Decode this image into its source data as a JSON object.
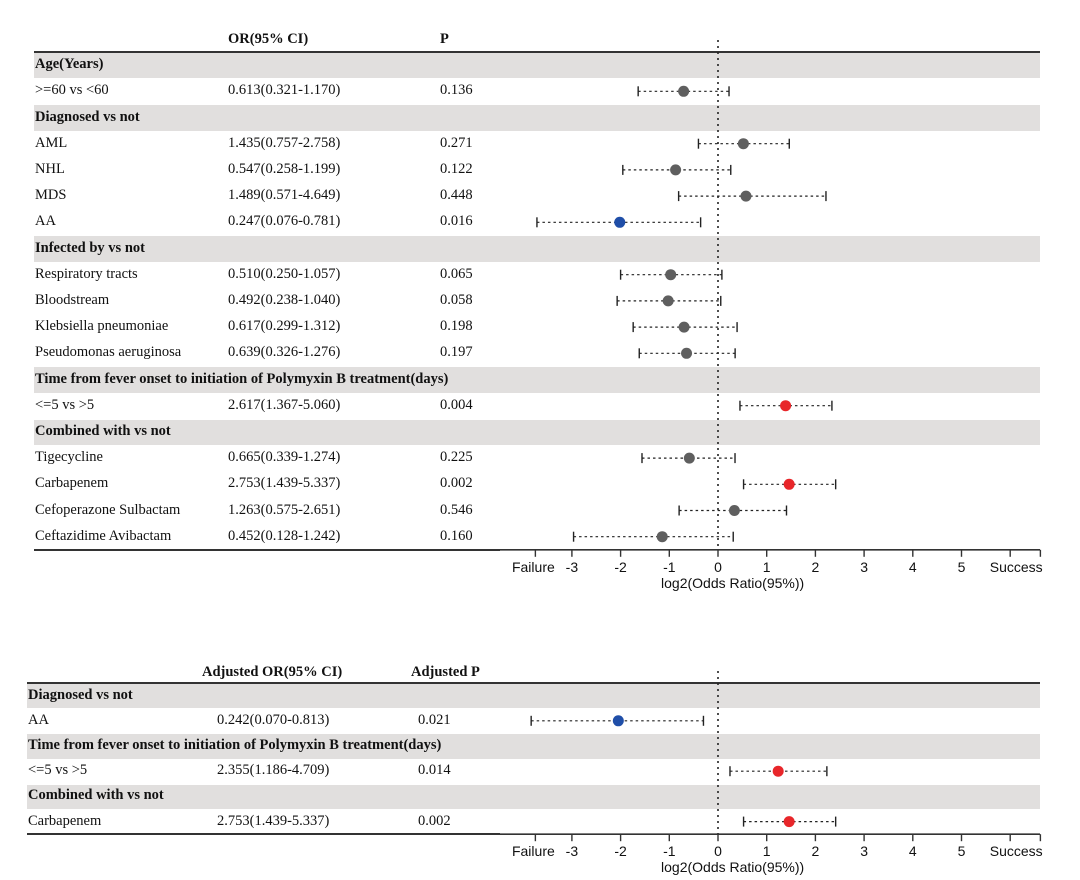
{
  "colors": {
    "band": "#e1dfde",
    "nonsignificant": "#5f5f5f",
    "protective": "#1f4ea8",
    "risk": "#e8262a",
    "axis": "#333333"
  },
  "chart_data": [
    {
      "type": "forest",
      "title": "",
      "columns": {
        "label": "",
        "or": "OR(95% CI)",
        "p": "P"
      },
      "xlabel": "log2(Odds Ratio(95%))",
      "xlim": [
        -3.75,
        6.75
      ],
      "x_ticks": [
        -3,
        -2,
        -1,
        0,
        1,
        2,
        3,
        4,
        5
      ],
      "x_left_label": "Failure",
      "x_right_label": "Success",
      "reference_line": 0,
      "rows": [
        {
          "kind": "group",
          "label": "Age(Years)"
        },
        {
          "kind": "item",
          "label": ">=60 vs <60",
          "or_text": "0.613(0.321-1.170)",
          "p": "0.136",
          "or": 0.613,
          "lo": 0.321,
          "hi": 1.17,
          "color": "nonsignificant"
        },
        {
          "kind": "group",
          "label": "Diagnosed vs not"
        },
        {
          "kind": "item",
          "label": "AML",
          "or_text": "1.435(0.757-2.758)",
          "p": "0.271",
          "or": 1.435,
          "lo": 0.757,
          "hi": 2.758,
          "color": "nonsignificant"
        },
        {
          "kind": "item",
          "label": "NHL",
          "or_text": "0.547(0.258-1.199)",
          "p": "0.122",
          "or": 0.547,
          "lo": 0.258,
          "hi": 1.199,
          "color": "nonsignificant"
        },
        {
          "kind": "item",
          "label": "MDS",
          "or_text": "1.489(0.571-4.649)",
          "p": "0.448",
          "or": 1.489,
          "lo": 0.571,
          "hi": 4.649,
          "color": "nonsignificant"
        },
        {
          "kind": "item",
          "label": "AA",
          "or_text": "0.247(0.076-0.781)",
          "p": "0.016",
          "or": 0.247,
          "lo": 0.076,
          "hi": 0.781,
          "color": "protective"
        },
        {
          "kind": "group",
          "label": "Infected by vs not"
        },
        {
          "kind": "item",
          "label": "Respiratory tracts",
          "or_text": "0.510(0.250-1.057)",
          "p": "0.065",
          "or": 0.51,
          "lo": 0.25,
          "hi": 1.057,
          "color": "nonsignificant"
        },
        {
          "kind": "item",
          "label": "Bloodstream",
          "or_text": "0.492(0.238-1.040)",
          "p": "0.058",
          "or": 0.492,
          "lo": 0.238,
          "hi": 1.04,
          "color": "nonsignificant"
        },
        {
          "kind": "item",
          "label": "Klebsiella pneumoniae",
          "or_text": "0.617(0.299-1.312)",
          "p": "0.198",
          "or": 0.617,
          "lo": 0.299,
          "hi": 1.312,
          "color": "nonsignificant"
        },
        {
          "kind": "item",
          "label": "Pseudomonas aeruginosa",
          "or_text": "0.639(0.326-1.276)",
          "p": "0.197",
          "or": 0.639,
          "lo": 0.326,
          "hi": 1.276,
          "color": "nonsignificant"
        },
        {
          "kind": "group",
          "label": "Time from fever onset to initiation of Polymyxin B treatment(days)"
        },
        {
          "kind": "item",
          "label": "<=5 vs >5",
          "or_text": "2.617(1.367-5.060)",
          "p": "0.004",
          "or": 2.617,
          "lo": 1.367,
          "hi": 5.06,
          "color": "risk"
        },
        {
          "kind": "group",
          "label": "Combined with vs not"
        },
        {
          "kind": "item",
          "label": "Tigecycline",
          "or_text": "0.665(0.339-1.274)",
          "p": "0.225",
          "or": 0.665,
          "lo": 0.339,
          "hi": 1.274,
          "color": "nonsignificant"
        },
        {
          "kind": "item",
          "label": "Carbapenem",
          "or_text": "2.753(1.439-5.337)",
          "p": "0.002",
          "or": 2.753,
          "lo": 1.439,
          "hi": 5.337,
          "color": "risk"
        },
        {
          "kind": "item",
          "label": "Cefoperazone Sulbactam",
          "or_text": "1.263(0.575-2.651)",
          "p": "0.546",
          "or": 1.263,
          "lo": 0.575,
          "hi": 2.651,
          "color": "nonsignificant"
        },
        {
          "kind": "item",
          "label": "Ceftazidime Avibactam",
          "or_text": "0.452(0.128-1.242)",
          "p": "0.160",
          "or": 0.452,
          "lo": 0.128,
          "hi": 1.242,
          "color": "nonsignificant"
        }
      ]
    },
    {
      "type": "forest",
      "title": "",
      "columns": {
        "label": "",
        "or": "Adjusted OR(95% CI)",
        "p": "Adjusted P"
      },
      "xlabel": "log2(Odds Ratio(95%))",
      "xlim": [
        -3.75,
        6.75
      ],
      "x_ticks": [
        -3,
        -2,
        -1,
        0,
        1,
        2,
        3,
        4,
        5
      ],
      "x_left_label": "Failure",
      "x_right_label": "Success",
      "reference_line": 0,
      "rows": [
        {
          "kind": "group",
          "label": "Diagnosed vs not"
        },
        {
          "kind": "item",
          "label": "AA",
          "or_text": "0.242(0.070-0.813)",
          "p": "0.021",
          "or": 0.242,
          "lo": 0.07,
          "hi": 0.813,
          "color": "protective"
        },
        {
          "kind": "group",
          "label": "Time from fever onset to initiation of Polymyxin B treatment(days)"
        },
        {
          "kind": "item",
          "label": "<=5 vs >5",
          "or_text": "2.355(1.186-4.709)",
          "p": "0.014",
          "or": 2.355,
          "lo": 1.186,
          "hi": 4.709,
          "color": "risk"
        },
        {
          "kind": "group",
          "label": "Combined with vs not"
        },
        {
          "kind": "item",
          "label": "Carbapenem",
          "or_text": "2.753(1.439-5.337)",
          "p": "0.002",
          "or": 2.753,
          "lo": 1.439,
          "hi": 5.337,
          "color": "risk"
        }
      ]
    }
  ]
}
